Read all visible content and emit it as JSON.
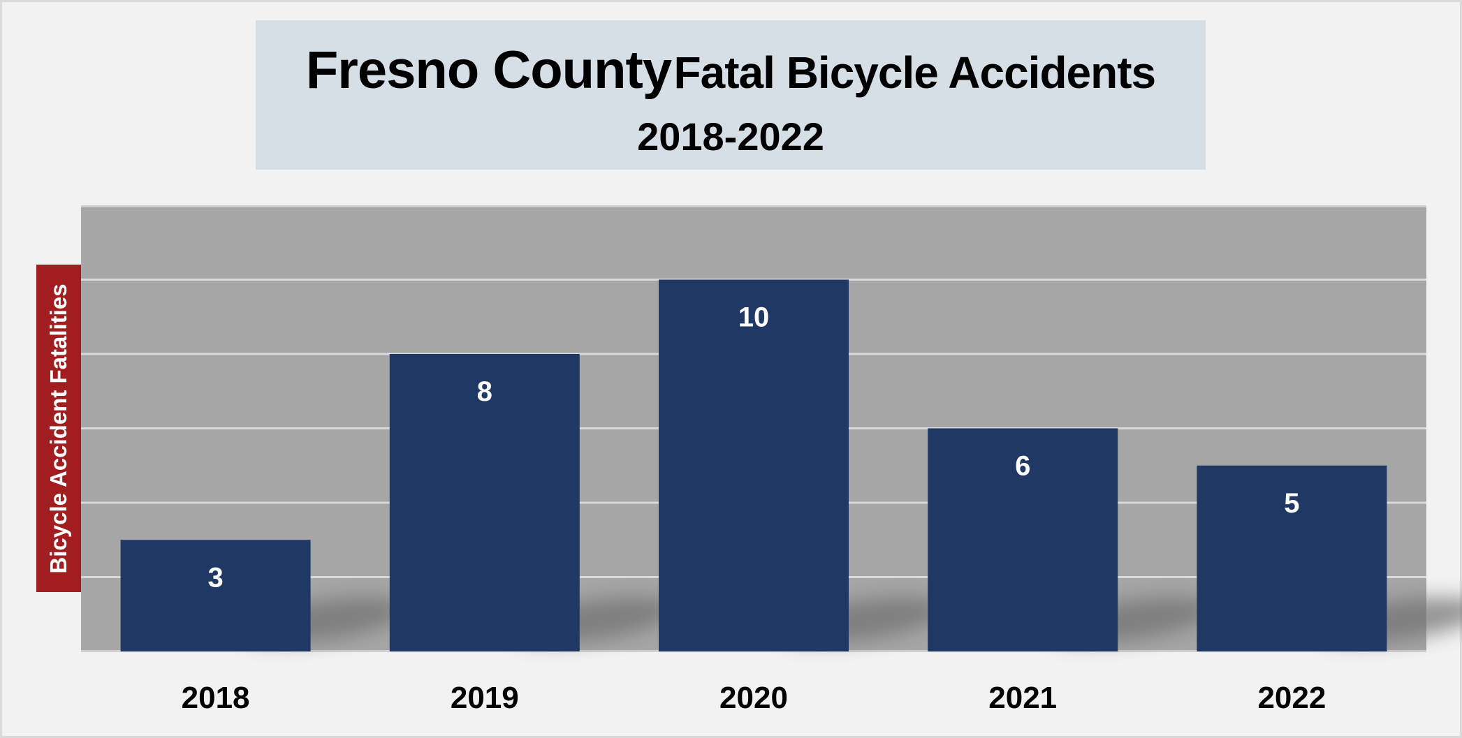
{
  "chart_data": {
    "type": "bar",
    "title": "Fresno County Fatal Bicycle Accidents",
    "title_parts": [
      "Fresno County",
      "Fatal Bicycle Accidents"
    ],
    "subtitle": "2018-2022",
    "xlabel": "",
    "ylabel": "Bicycle Accident Fatalities",
    "categories": [
      "2018",
      "2019",
      "2020",
      "2021",
      "2022"
    ],
    "values": [
      3,
      8,
      10,
      6,
      5
    ],
    "data_labels": [
      "3",
      "8",
      "10",
      "6",
      "5"
    ],
    "ylim": [
      0,
      12
    ],
    "grid_step": 2,
    "grid": true,
    "legend": "none",
    "colors": {
      "bar": "#203864",
      "plot_bg": "#a6a6a6",
      "gridline": "#d9d9d9",
      "ylabel_bg": "#a11d1f",
      "title_bg": "#d6dee6"
    }
  }
}
